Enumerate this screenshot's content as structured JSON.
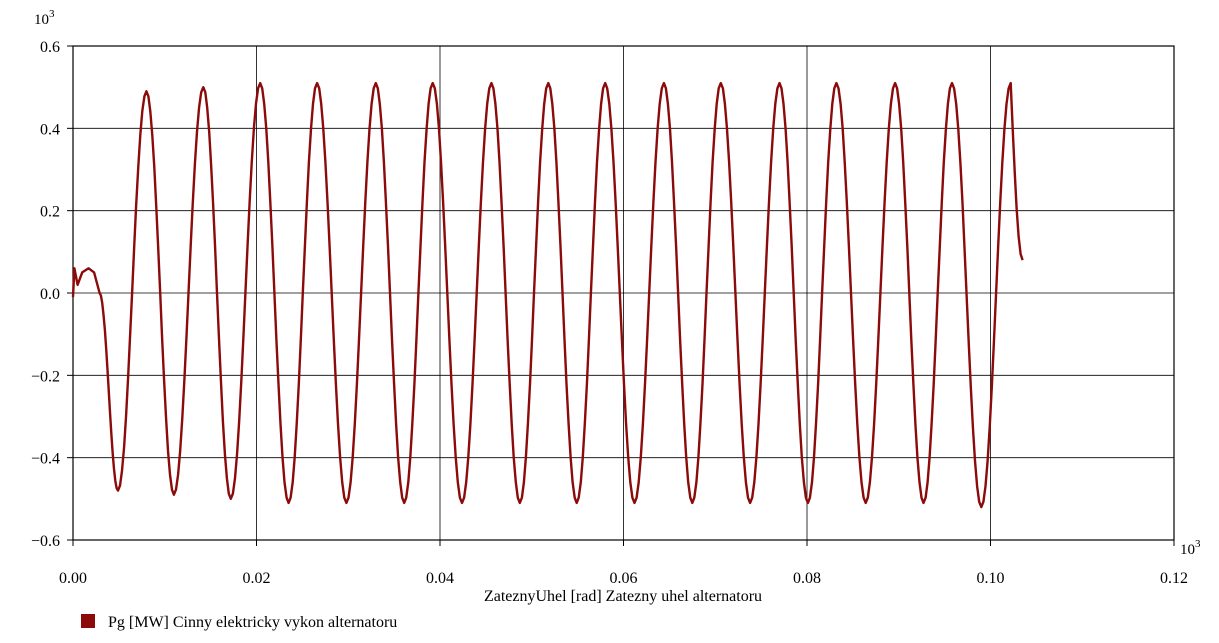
{
  "chart_data": {
    "type": "line",
    "xlabel": "ZateznyUhel [rad] Zatezny uhel alternatoru",
    "ylabel": "",
    "x_multiplier_label": {
      "base": "10",
      "exp": "3"
    },
    "y_multiplier_label": {
      "base": "10",
      "exp": "3"
    },
    "xlim": [
      0.0,
      0.12
    ],
    "ylim": [
      -0.6,
      0.6
    ],
    "x_ticks": [
      "0.00",
      "0.02",
      "0.04",
      "0.06",
      "0.08",
      "0.10",
      "0.12"
    ],
    "y_ticks": [
      "0.6",
      "0.4",
      "0.2",
      "0.0",
      "−0.2",
      "−0.4",
      "−0.6"
    ],
    "x_tick_values": [
      0.0,
      0.02,
      0.04,
      0.06,
      0.08,
      0.1,
      0.12
    ],
    "y_tick_values": [
      0.6,
      0.4,
      0.2,
      0.0,
      -0.2,
      -0.4,
      -0.6
    ],
    "grid": true,
    "legend_position": "bottom-left",
    "series": [
      {
        "name": "Pg [MW] Cinny elektricky vykon alternatoru",
        "color": "#8b0a0a",
        "peaks_x": [
          0.008,
          0.0142,
          0.0204,
          0.0266,
          0.033,
          0.0392,
          0.0456,
          0.0518,
          0.058,
          0.0644,
          0.0706,
          0.077,
          0.0832,
          0.0896,
          0.0958,
          0.1022
        ],
        "peaks_y": [
          0.49,
          0.5,
          0.51,
          0.51,
          0.51,
          0.51,
          0.51,
          0.51,
          0.51,
          0.51,
          0.51,
          0.51,
          0.51,
          0.51,
          0.51,
          0.51
        ],
        "troughs_x": [
          0.0049,
          0.011,
          0.0172,
          0.0235,
          0.0298,
          0.0361,
          0.0424,
          0.0487,
          0.0549,
          0.0612,
          0.0675,
          0.0738,
          0.0801,
          0.0864,
          0.0927,
          0.099
        ],
        "troughs_y": [
          -0.48,
          -0.49,
          -0.5,
          -0.51,
          -0.51,
          -0.51,
          -0.51,
          -0.51,
          -0.51,
          -0.51,
          -0.51,
          -0.51,
          -0.51,
          -0.51,
          -0.51,
          -0.52
        ],
        "start_x": [
          0.0,
          0.00015,
          0.0005,
          0.001,
          0.0017,
          0.0023,
          0.0029
        ],
        "start_y": [
          -0.01,
          0.06,
          0.02,
          0.05,
          0.06,
          0.05,
          0.0
        ],
        "end_x": 0.1035,
        "end_y": 0.08
      }
    ]
  }
}
